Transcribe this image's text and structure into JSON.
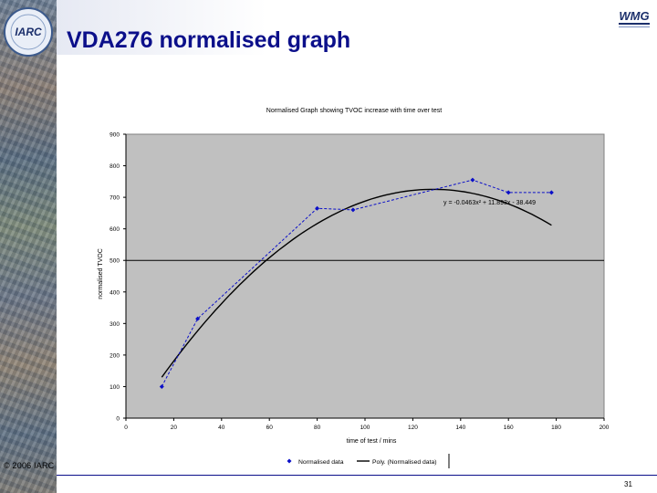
{
  "slide": {
    "title": "VDA276 normalised graph",
    "copyright": "© 2006 IARC",
    "page_number": "31",
    "logo_left": "IARC",
    "logo_right": "WMG"
  },
  "colors": {
    "title": "#0b0f8a",
    "plot_bg": "#c0c0c0",
    "series": "#0b0fc8",
    "trend": "#000000"
  },
  "chart_data": {
    "type": "scatter",
    "title": "Normalised Graph showing TVOC increase with time over test",
    "xlabel": "time of test / mins",
    "ylabel": "normalised TVOC",
    "xlim": [
      0,
      200
    ],
    "ylim": [
      0,
      900
    ],
    "x_ticks": [
      0,
      20,
      40,
      60,
      80,
      100,
      120,
      140,
      160,
      180,
      200
    ],
    "y_ticks": [
      0,
      100,
      200,
      300,
      400,
      500,
      600,
      700,
      800,
      900
    ],
    "grid": "horizontal at 500",
    "equation": "y = -0.0463x² + 11.893x - 38.449",
    "series": [
      {
        "name": "Normalised data",
        "x": [
          15,
          30,
          80,
          95,
          145,
          160,
          178
        ],
        "y": [
          100,
          315,
          665,
          660,
          755,
          715,
          715
        ]
      }
    ],
    "trend": {
      "name": "Poly. (Normalised data)",
      "coefficients": [
        -0.0463,
        11.893,
        -38.449
      ],
      "x_range": [
        15,
        178
      ]
    },
    "legend": {
      "position": "bottom",
      "entries": [
        "Normalised data",
        "Poly. (Normalised data)"
      ]
    }
  }
}
